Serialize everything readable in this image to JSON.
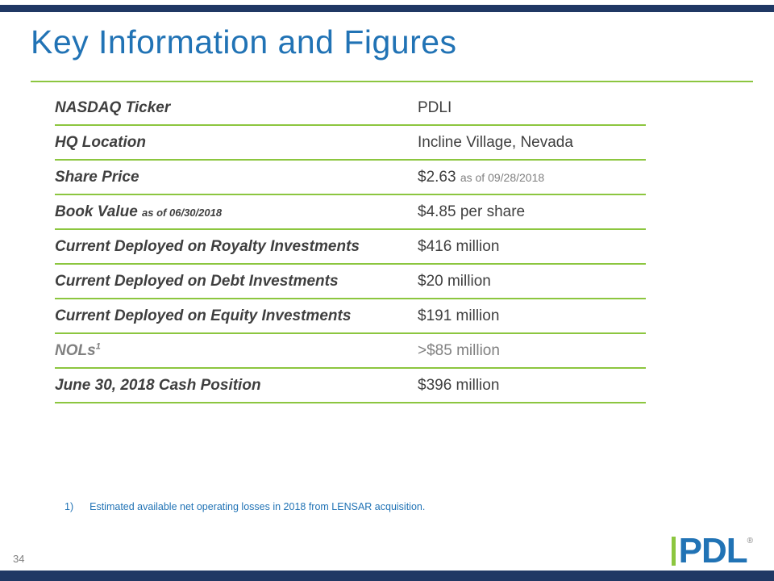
{
  "slide": {
    "title": "Key Information and Figures",
    "page_number": "34"
  },
  "table": {
    "rows": [
      {
        "label": "NASDAQ Ticker",
        "value": "PDLI"
      },
      {
        "label": "HQ Location",
        "value": "Incline Village, Nevada"
      },
      {
        "label": "Share Price",
        "value": "$2.63",
        "value_suffix": "as of 09/28/2018"
      },
      {
        "label": "Book Value",
        "label_suffix": "as of 06/30/2018",
        "value": "$4.85 per share"
      },
      {
        "label": "Current Deployed on Royalty Investments",
        "value": "$416 million"
      },
      {
        "label": "Current Deployed on Debt Investments",
        "value": "$20 million"
      },
      {
        "label": "Current Deployed on Equity Investments",
        "value": "$191 million"
      },
      {
        "label": "NOLs",
        "label_superscript": "1",
        "value": ">$85 million",
        "muted": true
      },
      {
        "label": "June 30, 2018 Cash Position",
        "value": "$396 million"
      }
    ]
  },
  "footnote": {
    "number": "1)",
    "text": "Estimated available net operating losses in 2018 from LENSAR acquisition."
  },
  "logo": {
    "text": "PDL",
    "registered": "®"
  },
  "colors": {
    "accent_blue": "#2173B5",
    "line_green": "#8CC63F",
    "bar_navy": "#203864",
    "text_dark": "#3F3F3F",
    "text_muted": "#808080"
  }
}
